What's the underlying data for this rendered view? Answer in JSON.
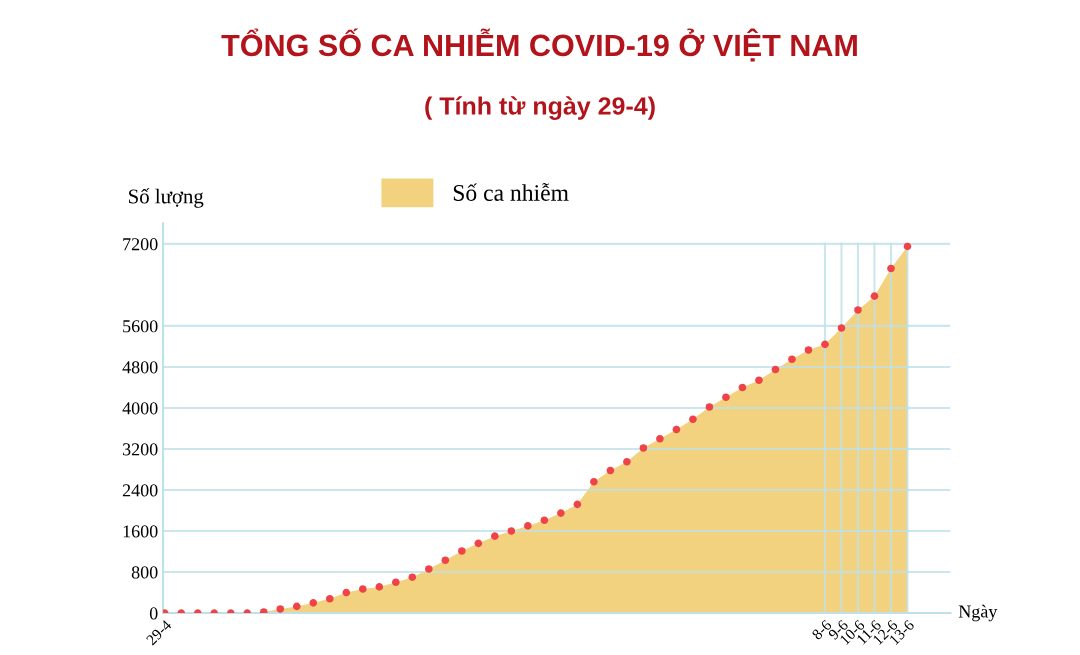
{
  "chart_data": {
    "type": "area",
    "title": "TỔNG SỐ CA NHIỄM COVID-19 Ở VIỆT NAM",
    "subtitle": "( Tính từ ngày 29-4)",
    "xlabel": "Ngày",
    "ylabel": "Số lượng",
    "categories": [
      "29-4",
      null,
      null,
      null,
      null,
      null,
      null,
      null,
      null,
      null,
      null,
      null,
      null,
      null,
      null,
      null,
      null,
      null,
      null,
      null,
      null,
      null,
      null,
      null,
      null,
      null,
      null,
      null,
      null,
      null,
      null,
      null,
      null,
      null,
      null,
      null,
      null,
      null,
      null,
      null,
      "8-6",
      "9-6",
      "10-6",
      "11-6",
      "12-6",
      "13-6"
    ],
    "series": [
      {
        "name": "Số ca nhiễm",
        "color": "#f2d27e",
        "values": [
          0,
          0,
          0,
          0,
          0,
          0,
          20,
          80,
          130,
          200,
          280,
          400,
          470,
          510,
          600,
          700,
          860,
          1030,
          1210,
          1360,
          1500,
          1600,
          1700,
          1810,
          1950,
          2120,
          2560,
          2780,
          2950,
          3220,
          3400,
          3580,
          3780,
          4020,
          4210,
          4400,
          4540,
          4750,
          4950,
          5130,
          5240,
          5560,
          5910,
          6180,
          6720,
          7150
        ]
      },
      {
        "type": "scatter",
        "marker": "circle",
        "color": "#ef4249",
        "values": [
          0,
          0,
          0,
          0,
          0,
          0,
          20,
          80,
          130,
          200,
          280,
          400,
          470,
          510,
          600,
          700,
          860,
          1030,
          1210,
          1360,
          1500,
          1600,
          1700,
          1810,
          1950,
          2120,
          2560,
          2780,
          2950,
          3220,
          3400,
          3580,
          3780,
          4020,
          4210,
          4400,
          4540,
          4750,
          4950,
          5130,
          5240,
          5560,
          5910,
          6180,
          6720,
          7150
        ]
      }
    ],
    "ylim": [
      0,
      7600
    ],
    "yticks": [
      0,
      800,
      1600,
      2400,
      3200,
      4000,
      4800,
      5600,
      7200
    ],
    "grid": true,
    "legend": "top"
  }
}
